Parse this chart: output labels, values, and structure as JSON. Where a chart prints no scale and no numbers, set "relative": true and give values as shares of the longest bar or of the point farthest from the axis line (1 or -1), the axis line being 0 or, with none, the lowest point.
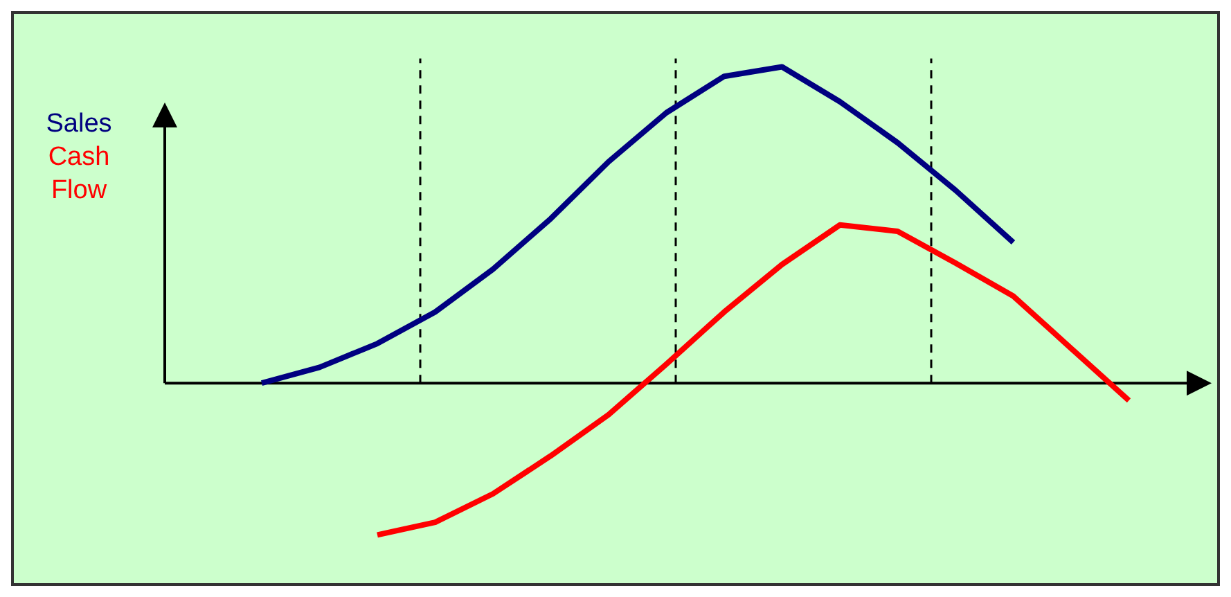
{
  "chart_data": {
    "type": "line",
    "relative": true,
    "legend": "top left",
    "line_style": "solid",
    "categories": [
      null,
      null,
      null,
      null,
      null,
      null,
      null,
      null,
      null,
      null,
      null,
      null,
      null,
      null,
      null,
      null,
      null
    ],
    "series": [
      {
        "name": "Sales",
        "color": "#000080",
        "values": [
          0.0,
          0.05,
          0.125,
          0.225,
          0.36,
          0.52,
          0.7,
          0.855,
          0.97,
          1.0,
          0.89,
          0.76,
          0.61,
          0.445,
          null,
          null,
          null
        ]
      },
      {
        "name": "Cash Flow",
        "color": "#ff0000",
        "values": [
          null,
          null,
          -0.48,
          -0.44,
          -0.35,
          -0.23,
          -0.1,
          0.06,
          0.225,
          0.375,
          0.5,
          0.48,
          0.38,
          0.275,
          0.11,
          -0.055,
          null
        ]
      }
    ]
  }
}
